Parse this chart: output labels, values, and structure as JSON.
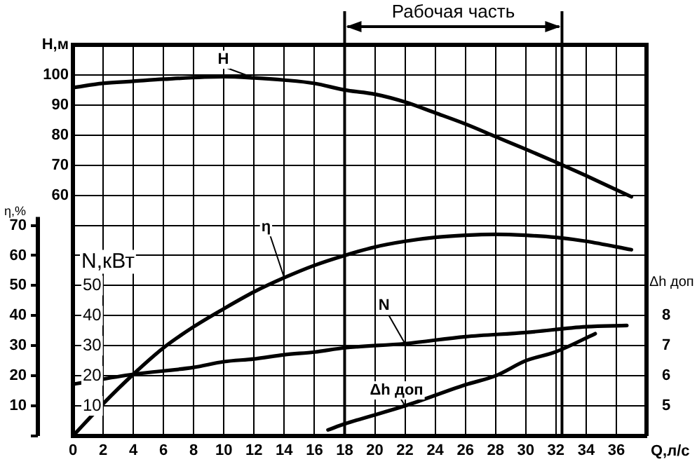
{
  "chart_data": {
    "type": "line",
    "xlabel": "Q,л/с",
    "ylabel": "η,%",
    "y2label": "Н,м",
    "y3label": "Δh доп",
    "xlim": [
      0,
      38
    ],
    "xticks": [
      0,
      2,
      4,
      6,
      8,
      10,
      12,
      14,
      16,
      18,
      20,
      22,
      24,
      26,
      28,
      30,
      32,
      34,
      36,
      {
        "value": 38,
        "label": null
      }
    ],
    "ylim": [
      0,
      130
    ],
    "yticks": [
      {
        "value": 0,
        "label": null
      },
      10,
      20,
      30,
      40,
      50,
      60,
      70
    ],
    "y2lim": [
      -20,
      110
    ],
    "y2ticks": [
      {
        "value": -20,
        "label": null
      },
      {
        "value": -10,
        "label": null
      },
      {
        "value": 0,
        "label": null
      },
      {
        "value": 10,
        "label": null
      },
      {
        "value": 20,
        "label": null
      },
      {
        "value": 30,
        "label": null
      },
      {
        "value": 40,
        "label": null
      },
      {
        "value": 50,
        "label": null
      },
      60,
      70,
      80,
      90,
      100,
      {
        "value": 110,
        "label": null
      }
    ],
    "y3lim": [
      4,
      17
    ],
    "y3ticks": [
      5,
      6,
      7,
      8
    ],
    "grid": true,
    "legend": false,
    "marker": "none",
    "ref_lines": [
      {
        "axis": "x",
        "value": 18
      },
      {
        "axis": "x",
        "value": 32.4
      }
    ],
    "annotations": [
      "Рабочая часть",
      "N,кВт",
      "10",
      "20",
      "30",
      "40",
      "50"
    ],
    "series": [
      {
        "name": "H",
        "color": "#000000",
        "axis": "y2",
        "x": [
          0,
          2,
          4,
          6,
          10,
          12,
          14,
          16,
          18,
          20,
          22,
          24,
          26,
          28,
          30,
          32,
          34,
          37
        ],
        "values": [
          95.8,
          97.2,
          97.9,
          98.6,
          99.4,
          99,
          98.3,
          97.2,
          95,
          93.6,
          91,
          87.4,
          83.7,
          79.5,
          75.3,
          71,
          66.5,
          59.5
        ]
      },
      {
        "name": "η",
        "color": "#000000",
        "x": [
          0,
          2,
          4,
          6,
          8,
          10,
          12,
          14,
          16,
          18,
          20,
          22,
          24,
          26,
          28,
          30,
          32,
          34,
          37
        ],
        "values": [
          0,
          10.7,
          20.5,
          29.3,
          36.3,
          42.3,
          47.9,
          52.6,
          56.7,
          60,
          62.8,
          64.7,
          66,
          66.7,
          67,
          66.7,
          66,
          64.7,
          61.9
        ]
      },
      {
        "name": "N",
        "color": "#000000",
        "x": [
          0,
          4,
          8,
          10,
          12,
          14,
          16,
          18,
          22,
          26,
          30,
          34,
          36.7
        ],
        "values": [
          17.2,
          20.5,
          22.8,
          24.7,
          25.6,
          27,
          27.9,
          29.3,
          30.7,
          33,
          34.4,
          36.3,
          36.7
        ]
      },
      {
        "name": "Δh доп",
        "color": "#000000",
        "axis": "y3",
        "x": [
          16.9,
          18,
          22,
          26,
          28,
          30,
          32,
          34.6
        ],
        "values": [
          4.2,
          4.4,
          5,
          5.7,
          6,
          6.5,
          6.8,
          7.4
        ]
      }
    ]
  }
}
